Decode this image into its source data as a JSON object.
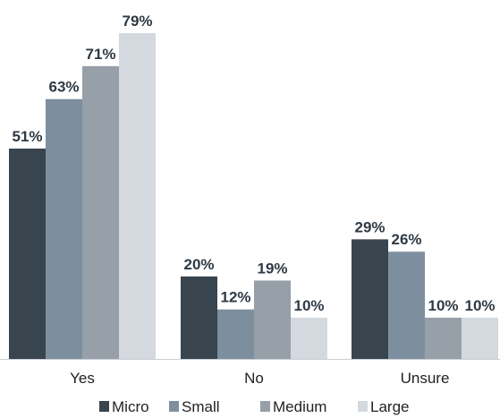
{
  "chart_data": {
    "type": "bar",
    "categories": [
      "Yes",
      "No",
      "Unsure"
    ],
    "series": [
      {
        "name": "Micro",
        "color": "#38444e",
        "values": [
          51,
          20,
          29
        ],
        "labels": [
          "51%",
          "20%",
          "29%"
        ]
      },
      {
        "name": "Small",
        "color": "#7d8f9e",
        "values": [
          63,
          12,
          26
        ],
        "labels": [
          "63%",
          "12%",
          "26%"
        ]
      },
      {
        "name": "Medium",
        "color": "#979fa8",
        "values": [
          71,
          19,
          10
        ],
        "labels": [
          "71%",
          "19%",
          "10%"
        ]
      },
      {
        "name": "Large",
        "color": "#d3d9df",
        "values": [
          79,
          10,
          10
        ],
        "labels": [
          "79%",
          "10%",
          "10%"
        ]
      }
    ],
    "ylim": [
      0,
      79
    ],
    "legend_position": "bottom",
    "grid": false
  }
}
